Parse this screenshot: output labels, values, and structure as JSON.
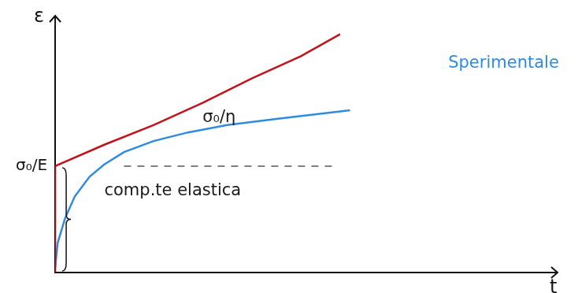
{
  "chart_data": {
    "type": "line",
    "x_label": "t",
    "y_label": "ε",
    "xlim": [
      0,
      1
    ],
    "ylim": [
      0,
      1
    ],
    "yticks": [
      {
        "value": 0.433,
        "label": "σ₀/E"
      }
    ],
    "tick_labels": "y",
    "grid": false,
    "series": [
      {
        "color": "#c0141c",
        "line_style": "solid",
        "marker": "none",
        "x": [
          0,
          0,
          0.1,
          0.2,
          0.3,
          0.4,
          0.5,
          0.58
        ],
        "values": [
          0,
          0.433,
          0.52,
          0.6,
          0.69,
          0.79,
          0.88,
          0.97
        ]
      },
      {
        "color": "#2f8be0",
        "line_style": "solid",
        "marker": "none",
        "x": [
          0,
          0.005,
          0.02,
          0.04,
          0.07,
          0.1,
          0.14,
          0.2,
          0.27,
          0.35,
          0.45,
          0.6
        ],
        "values": [
          0.02,
          0.12,
          0.22,
          0.31,
          0.39,
          0.44,
          0.49,
          0.535,
          0.57,
          0.6,
          0.625,
          0.66
        ]
      },
      {
        "color": "#555555",
        "line_style": "dashed",
        "marker": "none",
        "x": [
          0.14,
          0.57
        ],
        "values": [
          0.433,
          0.433
        ]
      }
    ],
    "annotations": [
      {
        "text": "Sperimentale",
        "x": 0.8,
        "y": 0.85,
        "color": "#2f8be0"
      },
      {
        "text": "σ₀/η",
        "x": 0.3,
        "y": 0.63,
        "color": "#1a1a1a"
      },
      {
        "text": "comp.te elastica",
        "x": 0.1,
        "y": 0.33,
        "color": "#1a1a1a"
      }
    ]
  }
}
